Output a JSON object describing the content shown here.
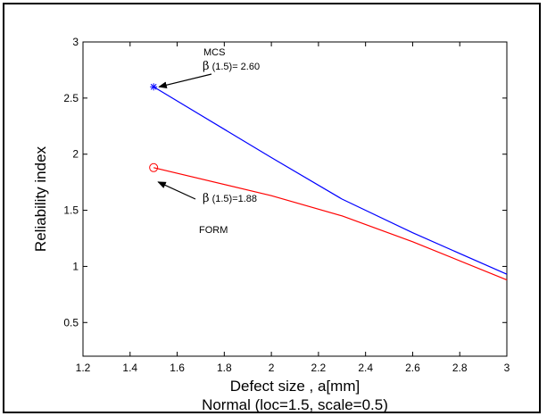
{
  "chart_data": {
    "type": "line",
    "title": "",
    "xlabel": "Defect size   , a[mm]",
    "subtitle": "Normal (loc=1.5, scale=0.5)",
    "ylabel": "Reliability index",
    "xlim": [
      1.2,
      3.0
    ],
    "ylim": [
      0.2,
      3.0
    ],
    "xticks": [
      "1.2",
      "1.4",
      "1.6",
      "1.8",
      "2",
      "2.2",
      "2.4",
      "2.6",
      "2.8",
      "3"
    ],
    "yticks": [
      "0.5",
      "1",
      "1.5",
      "2",
      "2.5",
      "3"
    ],
    "grid": false,
    "series": [
      {
        "name": "MCS",
        "color": "#0000ff",
        "marker": "star",
        "x": [
          1.5,
          2.0,
          2.3,
          2.6,
          3.0
        ],
        "y": [
          2.6,
          1.97,
          1.6,
          1.3,
          0.93
        ]
      },
      {
        "name": "FORM",
        "color": "#ff0000",
        "marker": "circle",
        "x": [
          1.5,
          2.0,
          2.3,
          2.6,
          3.0
        ],
        "y": [
          1.88,
          1.63,
          1.45,
          1.22,
          0.88
        ]
      }
    ],
    "annotations": [
      {
        "label": "MCS",
        "value_text": "β (1.5)= 2.60",
        "beta": "β",
        "rest": " (1.5)= 2.60",
        "at": [
          1.5,
          2.6
        ]
      },
      {
        "label": "FORM",
        "value_text": "β (1.5)=1.88",
        "beta": "β",
        "rest": " (1.5)=1.88",
        "at": [
          1.5,
          1.88
        ]
      }
    ]
  }
}
